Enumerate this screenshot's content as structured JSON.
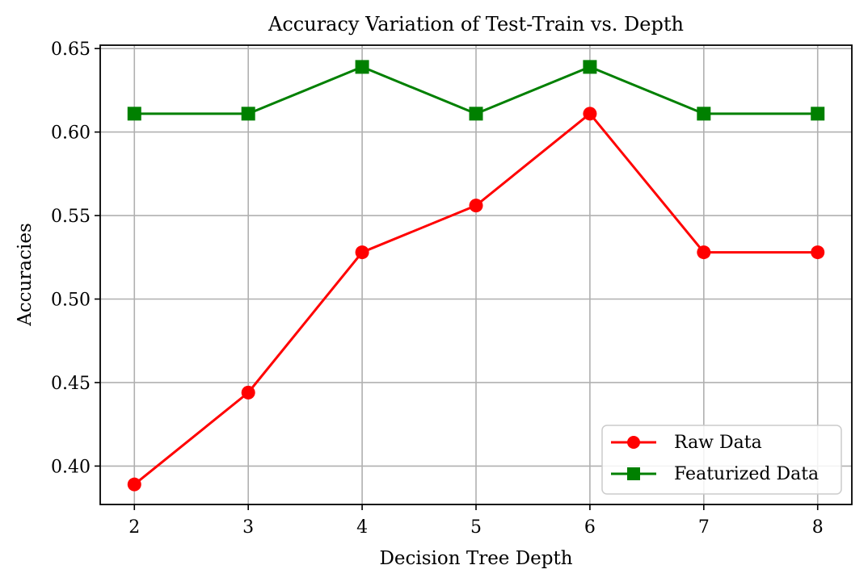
{
  "chart_data": {
    "type": "line",
    "title": "Accuracy Variation of Test-Train vs. Depth",
    "xlabel": "Decision Tree Depth",
    "ylabel": "Accuracies",
    "x": [
      2,
      3,
      4,
      5,
      6,
      7,
      8
    ],
    "x_ticks": [
      "2",
      "3",
      "4",
      "5",
      "6",
      "7",
      "8"
    ],
    "y_ticks": [
      "0.40",
      "0.45",
      "0.50",
      "0.55",
      "0.60",
      "0.65"
    ],
    "y_tick_values": [
      0.4,
      0.45,
      0.5,
      0.55,
      0.6,
      0.65
    ],
    "xlim": [
      1.7,
      8.3
    ],
    "ylim": [
      0.377,
      0.652
    ],
    "grid": true,
    "legend_position": "bottom-right",
    "series": [
      {
        "name": "Raw Data",
        "color": "#ff0000",
        "marker": "circle",
        "values": [
          0.389,
          0.444,
          0.528,
          0.556,
          0.611,
          0.528,
          0.528
        ]
      },
      {
        "name": "Featurized Data",
        "color": "#008000",
        "marker": "square",
        "values": [
          0.611,
          0.611,
          0.639,
          0.611,
          0.639,
          0.611,
          0.611
        ]
      }
    ]
  }
}
